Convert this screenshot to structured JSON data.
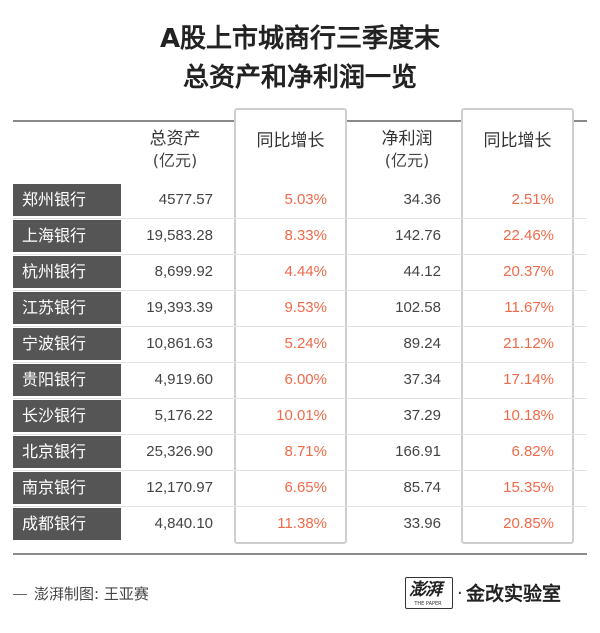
{
  "title": {
    "line1": "A股上市城商行三季度末",
    "line2": "总资产和净利润一览"
  },
  "headers": {
    "total_assets": "总资产",
    "total_assets_unit": "(亿元)",
    "assets_yoy": "同比增长",
    "net_profit": "净利润",
    "net_profit_unit": "(亿元)",
    "profit_yoy": "同比增长"
  },
  "rows": [
    {
      "bank": "郑州银行",
      "assets": "4577.57",
      "assets_yoy": "5.03%",
      "profit": "34.36",
      "profit_yoy": "2.51%"
    },
    {
      "bank": "上海银行",
      "assets": "19,583.28",
      "assets_yoy": "8.33%",
      "profit": "142.76",
      "profit_yoy": "22.46%"
    },
    {
      "bank": "杭州银行",
      "assets": "8,699.92",
      "assets_yoy": "4.44%",
      "profit": "44.12",
      "profit_yoy": "20.37%"
    },
    {
      "bank": "江苏银行",
      "assets": "19,393.39",
      "assets_yoy": "9.53%",
      "profit": "102.58",
      "profit_yoy": "11.67%"
    },
    {
      "bank": "宁波银行",
      "assets": "10,861.63",
      "assets_yoy": "5.24%",
      "profit": "89.24",
      "profit_yoy": "21.12%"
    },
    {
      "bank": "贵阳银行",
      "assets": "4,919.60",
      "assets_yoy": "6.00%",
      "profit": "37.34",
      "profit_yoy": "17.14%"
    },
    {
      "bank": "长沙银行",
      "assets": "5,176.22",
      "assets_yoy": "10.01%",
      "profit": "37.29",
      "profit_yoy": "10.18%"
    },
    {
      "bank": "北京银行",
      "assets": "25,326.90",
      "assets_yoy": "8.71%",
      "profit": "166.91",
      "profit_yoy": "6.82%"
    },
    {
      "bank": "南京银行",
      "assets": "12,170.97",
      "assets_yoy": "6.65%",
      "profit": "85.74",
      "profit_yoy": "15.35%"
    },
    {
      "bank": "成都银行",
      "assets": "4,840.10",
      "assets_yoy": "11.38%",
      "profit": "33.96",
      "profit_yoy": "20.85%"
    }
  ],
  "footer": {
    "credit": "澎湃制图: 王亚赛",
    "logo_brush": "澎湃",
    "logo_small": "THE PAPER",
    "logo_text": "金改实验室"
  },
  "colors": {
    "bank_label_bg": "#555555",
    "growth_text": "#ef6a4a",
    "column_box_border": "#cfcfcf"
  }
}
